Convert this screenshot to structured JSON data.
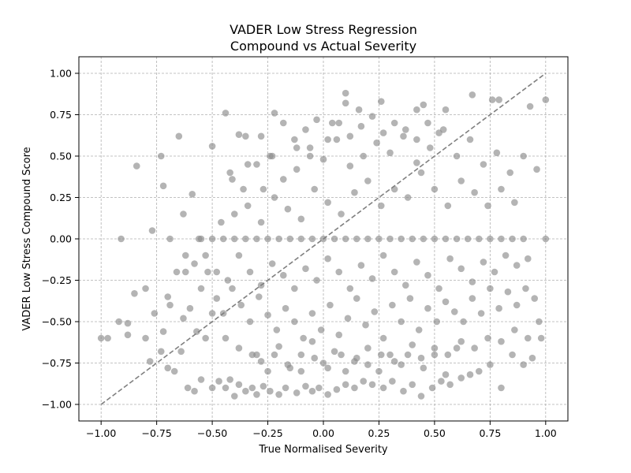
{
  "chart_data": {
    "type": "scatter",
    "title_line1": "VADER Low Stress Regression",
    "title_line2": "Compound vs Actual Severity",
    "xlabel": "True Normalised Severity",
    "ylabel": "VADER Low Stress Compound Score",
    "xlim": [
      -1.1,
      1.1
    ],
    "ylim": [
      -1.1,
      1.1
    ],
    "x_ticks": [
      "−1.00",
      "−0.75",
      "−0.50",
      "−0.25",
      "0.00",
      "0.25",
      "0.50",
      "0.75",
      "1.00"
    ],
    "y_ticks": [
      "−1.00",
      "−0.75",
      "−0.50",
      "−0.25",
      "0.00",
      "0.25",
      "0.50",
      "0.75",
      "1.00"
    ],
    "grid": true,
    "reference_line": {
      "from": [
        -1.0,
        -1.0
      ],
      "to": [
        1.0,
        1.0
      ],
      "style": "dashed"
    },
    "series": [
      {
        "x": [
          -1.0,
          -0.91,
          -0.84,
          -0.77,
          -0.73,
          -0.72,
          -0.69,
          -0.65,
          -0.63,
          -0.62,
          -0.59,
          -0.56,
          -0.5,
          -0.44,
          -0.41,
          -0.38,
          -0.35,
          -0.34,
          -0.27,
          -0.22,
          -0.12,
          -0.06,
          0.04,
          0.1,
          0.1,
          0.16,
          0.26,
          0.42,
          0.45,
          0.55,
          0.67,
          0.76,
          0.79,
          0.93,
          1.0,
          1.0,
          -0.97,
          -0.88,
          -0.88,
          -0.85,
          -0.8,
          -0.8,
          -0.78,
          -0.73,
          -0.72,
          -0.7,
          -0.67,
          -0.64,
          -0.61,
          -0.58,
          -0.55,
          -0.53,
          -0.5,
          -0.47,
          -0.44,
          -0.42,
          -0.4,
          -0.38,
          -0.35,
          -0.32,
          -0.3,
          -0.27,
          -0.24,
          -0.2,
          -0.17,
          -0.12,
          -0.08,
          -0.05,
          -0.02,
          0.02,
          0.06,
          0.1,
          0.14,
          0.18,
          0.22,
          0.27,
          0.31,
          0.36,
          0.4,
          0.44,
          0.49,
          0.53,
          0.57,
          0.62,
          0.66,
          0.7,
          0.75,
          0.8,
          0.85,
          0.9,
          0.94,
          0.98,
          -0.92,
          -0.76,
          -0.69,
          -0.63,
          -0.57,
          -0.5,
          -0.44,
          -0.38,
          -0.32,
          -0.28,
          -0.22,
          -0.16,
          -0.1,
          -0.04,
          0.02,
          0.08,
          0.14,
          0.2,
          0.26,
          0.32,
          0.38,
          0.44,
          0.5,
          0.56,
          0.62,
          0.68,
          0.74,
          0.8,
          0.86,
          0.92,
          0.97,
          -0.7,
          -0.66,
          -0.6,
          -0.55,
          -0.52,
          -0.48,
          -0.45,
          -0.41,
          -0.37,
          -0.33,
          -0.29,
          -0.25,
          -0.21,
          -0.17,
          -0.13,
          -0.09,
          -0.05,
          -0.01,
          0.03,
          0.07,
          0.11,
          0.15,
          0.19,
          0.23,
          0.27,
          0.31,
          0.35,
          0.39,
          0.43,
          0.47,
          0.51,
          0.55,
          0.59,
          0.63,
          0.67,
          0.71,
          0.75,
          0.79,
          0.83,
          0.87,
          0.91,
          0.95,
          -0.62,
          -0.58,
          -0.53,
          -0.48,
          -0.43,
          -0.38,
          -0.33,
          -0.28,
          -0.23,
          -0.18,
          -0.13,
          -0.08,
          -0.03,
          0.02,
          0.07,
          0.12,
          0.17,
          0.22,
          0.27,
          0.32,
          0.37,
          0.42,
          0.47,
          0.52,
          0.57,
          0.62,
          0.67,
          0.72,
          0.77,
          0.82,
          0.87,
          0.92,
          -0.55,
          -0.5,
          -0.45,
          -0.4,
          -0.35,
          -0.3,
          -0.25,
          -0.2,
          -0.15,
          -0.1,
          -0.05,
          0.0,
          0.05,
          0.1,
          0.15,
          0.2,
          0.25,
          0.3,
          0.35,
          0.4,
          0.45,
          0.5,
          0.55,
          0.6,
          0.65,
          0.7,
          0.75,
          0.8,
          0.85,
          0.9,
          -0.46,
          -0.4,
          -0.34,
          -0.28,
          -0.22,
          -0.16,
          -0.1,
          -0.04,
          0.02,
          0.08,
          0.14,
          0.2,
          0.26,
          0.32,
          0.38,
          0.44,
          0.5,
          0.56,
          0.62,
          0.68,
          0.74,
          0.8,
          0.86,
          -0.42,
          -0.36,
          -0.3,
          -0.24,
          -0.18,
          -0.12,
          -0.06,
          0.0,
          0.06,
          0.12,
          0.18,
          0.24,
          0.3,
          0.36,
          0.42,
          0.48,
          0.54,
          0.6,
          0.66,
          0.72,
          0.78,
          0.84,
          0.9,
          0.96,
          -0.3,
          -0.25,
          -0.2,
          -0.15,
          -0.1,
          -0.05,
          0.0,
          0.05,
          0.1,
          0.15,
          0.2,
          0.25,
          0.3,
          0.35,
          0.4,
          0.45,
          0.5,
          0.55,
          0.6,
          -0.28,
          -0.23,
          -0.18,
          -0.13,
          -0.08,
          -0.03,
          0.02,
          0.07,
          0.12,
          0.17,
          0.22,
          0.27,
          0.32,
          0.37,
          0.42,
          0.47,
          0.52
        ],
        "y": [
          -0.6,
          0.0,
          0.44,
          0.05,
          0.5,
          0.32,
          0.0,
          0.62,
          0.15,
          -0.2,
          0.27,
          0.0,
          0.56,
          0.76,
          0.36,
          0.63,
          0.62,
          0.45,
          0.3,
          0.76,
          0.55,
          0.5,
          0.7,
          0.88,
          0.82,
          0.78,
          0.83,
          0.78,
          0.81,
          0.78,
          0.87,
          0.84,
          0.84,
          0.8,
          0.84,
          0.0,
          -0.6,
          -0.51,
          -0.58,
          -0.33,
          -0.3,
          -0.6,
          -0.74,
          -0.68,
          -0.56,
          -0.78,
          -0.8,
          -0.68,
          -0.9,
          -0.92,
          -0.85,
          -0.6,
          -0.9,
          -0.86,
          -0.9,
          -0.85,
          -0.95,
          -0.88,
          -0.92,
          -0.9,
          -0.94,
          -0.89,
          -0.92,
          -0.94,
          -0.9,
          -0.93,
          -0.89,
          -0.92,
          -0.9,
          -0.94,
          -0.91,
          -0.88,
          -0.9,
          -0.86,
          -0.88,
          -0.9,
          -0.86,
          -0.92,
          -0.88,
          -0.95,
          -0.9,
          -0.86,
          -0.88,
          -0.84,
          -0.82,
          -0.8,
          -0.76,
          -0.9,
          -0.7,
          -0.76,
          -0.72,
          -0.6,
          -0.5,
          -0.45,
          -0.4,
          -0.48,
          -0.56,
          -0.45,
          -0.6,
          -0.66,
          -0.7,
          -0.74,
          -0.7,
          -0.76,
          -0.8,
          -0.72,
          -0.78,
          -0.7,
          -0.74,
          -0.76,
          -0.7,
          -0.74,
          -0.7,
          -0.72,
          -0.66,
          -0.7,
          -0.62,
          -0.66,
          -0.6,
          -0.62,
          -0.55,
          -0.6,
          -0.5,
          -0.35,
          -0.2,
          -0.42,
          -0.3,
          -0.2,
          -0.36,
          -0.45,
          -0.3,
          -0.4,
          -0.5,
          -0.35,
          -0.46,
          -0.55,
          -0.42,
          -0.5,
          -0.6,
          -0.45,
          -0.55,
          -0.4,
          -0.58,
          -0.48,
          -0.36,
          -0.52,
          -0.44,
          -0.6,
          -0.4,
          -0.5,
          -0.36,
          -0.55,
          -0.42,
          -0.5,
          -0.38,
          -0.44,
          -0.5,
          -0.36,
          -0.45,
          -0.3,
          -0.42,
          -0.32,
          -0.4,
          -0.3,
          -0.36,
          -0.1,
          -0.15,
          -0.1,
          -0.2,
          -0.25,
          -0.1,
          -0.2,
          -0.28,
          -0.15,
          -0.22,
          -0.3,
          -0.18,
          -0.25,
          -0.12,
          -0.2,
          -0.3,
          -0.16,
          -0.24,
          -0.1,
          -0.2,
          -0.28,
          -0.14,
          -0.22,
          -0.3,
          -0.12,
          -0.18,
          -0.26,
          -0.14,
          -0.2,
          -0.1,
          -0.16,
          -0.12,
          0.0,
          0.0,
          0.0,
          0.0,
          0.0,
          0.0,
          0.0,
          0.0,
          0.0,
          0.0,
          0.0,
          0.0,
          0.0,
          0.0,
          0.0,
          0.0,
          0.0,
          0.0,
          0.0,
          0.0,
          0.0,
          0.0,
          0.0,
          0.0,
          0.0,
          0.0,
          0.0,
          0.0,
          0.0,
          0.0,
          0.1,
          0.15,
          0.2,
          0.1,
          0.25,
          0.18,
          0.12,
          0.3,
          0.22,
          0.15,
          0.28,
          0.35,
          0.2,
          0.3,
          0.25,
          0.4,
          0.3,
          0.2,
          0.35,
          0.28,
          0.2,
          0.3,
          0.22,
          0.4,
          0.3,
          0.45,
          0.5,
          0.36,
          0.42,
          0.55,
          0.48,
          0.6,
          0.44,
          0.5,
          0.58,
          0.52,
          0.62,
          0.46,
          0.55,
          0.66,
          0.5,
          0.6,
          0.45,
          0.52,
          0.4,
          0.5,
          0.42,
          -0.7,
          -0.8,
          -0.65,
          -0.78,
          -0.7,
          -0.62,
          -0.75,
          -0.68,
          -0.8,
          -0.72,
          -0.66,
          -0.8,
          -0.7,
          -0.76,
          -0.64,
          -0.78,
          -0.7,
          -0.82,
          -0.66,
          0.62,
          0.5,
          0.7,
          0.6,
          0.66,
          0.72,
          0.6,
          0.7,
          0.62,
          0.68,
          0.74,
          0.64,
          0.7,
          0.66,
          0.6,
          0.7,
          0.64
        ]
      }
    ]
  }
}
